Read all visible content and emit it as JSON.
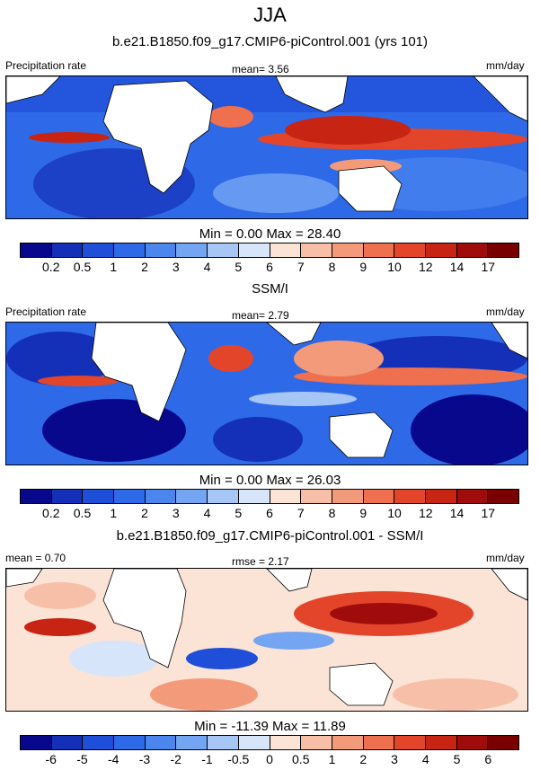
{
  "title": "JJA",
  "panels": [
    {
      "id": "model",
      "subtitle": "b.e21.B1850.f09_g17.CMIP6-piControl.001 (yrs 101)",
      "left_label": "Precipitation rate",
      "stat_label": "mean=   3.56",
      "unit": "mm/day",
      "minmax": "Min =   0.00 Max =  28.40",
      "colorbar": "precip"
    },
    {
      "id": "obs",
      "subtitle": "SSM/I",
      "left_label": "Precipitation rate",
      "stat_label": "mean=   2.79",
      "unit": "mm/day",
      "minmax": "Min =   0.00 Max =  26.03",
      "colorbar": "precip"
    },
    {
      "id": "diff",
      "subtitle": "b.e21.B1850.f09_g17.CMIP6-piControl.001 - SSM/I",
      "left_label": "mean =   0.70",
      "stat_label": "rmse =   2.17",
      "unit": "mm/day",
      "minmax": "Min = -11.39 Max =  11.89",
      "colorbar": "diff"
    }
  ],
  "colorbars": {
    "precip": {
      "labels": [
        "0.2",
        "0.5",
        "1",
        "2",
        "3",
        "4",
        "5",
        "6",
        "7",
        "8",
        "9",
        "10",
        "12",
        "14",
        "17"
      ],
      "colors": [
        "#08088c",
        "#1530b8",
        "#1f4fd8",
        "#2e6ae8",
        "#4a86ee",
        "#74a5f2",
        "#a6c6f6",
        "#d6e5fa",
        "#fbe3d6",
        "#f7bfa8",
        "#f39a7a",
        "#ee704e",
        "#e3452a",
        "#c82414",
        "#a00c0c",
        "#7a0000"
      ]
    },
    "diff": {
      "labels": [
        "-6",
        "-5",
        "-4",
        "-3",
        "-2",
        "-1",
        "-0.5",
        "0",
        "0.5",
        "1",
        "2",
        "3",
        "4",
        "5",
        "6"
      ],
      "colors": [
        "#08088c",
        "#1530b8",
        "#1f4fd8",
        "#2e6ae8",
        "#4a86ee",
        "#74a5f2",
        "#a6c6f6",
        "#d6e5fa",
        "#fbe3d6",
        "#f7bfa8",
        "#f39a7a",
        "#ee704e",
        "#e3452a",
        "#c82414",
        "#a00c0c",
        "#7a0000"
      ]
    }
  }
}
